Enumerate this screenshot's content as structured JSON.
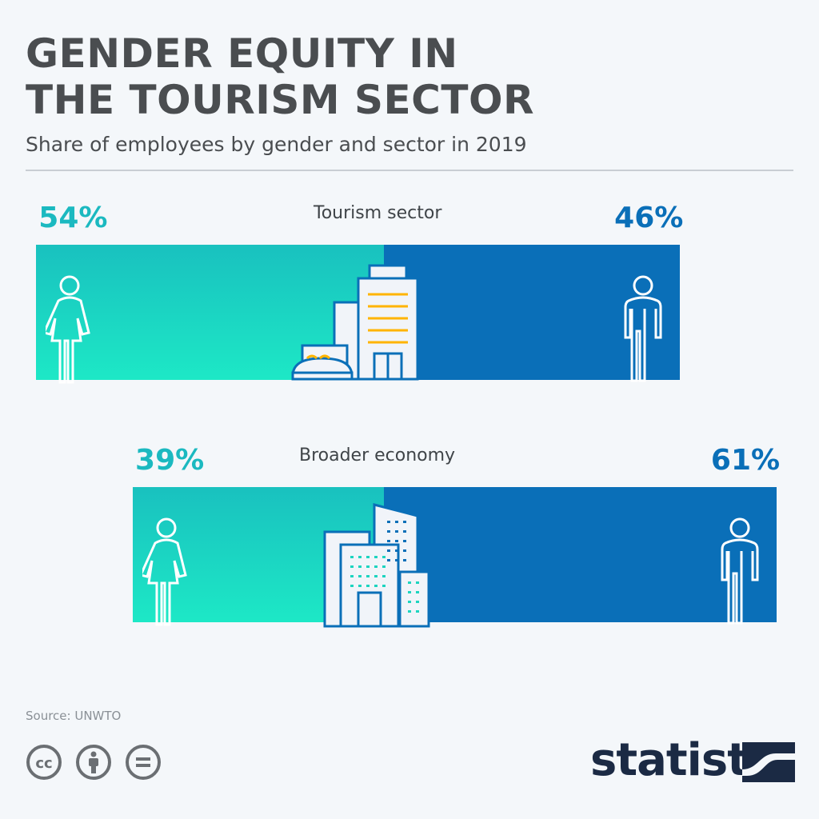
{
  "header": {
    "title_line1": "GENDER EQUITY IN",
    "title_line2": "THE TOURISM SECTOR",
    "subtitle": "Share of employees by gender and sector in 2019"
  },
  "chart_data": {
    "type": "bar",
    "stacked": true,
    "orientation": "horizontal",
    "categories": [
      "Tourism sector",
      "Broader economy"
    ],
    "series": [
      {
        "name": "Women",
        "values": [
          54,
          39
        ],
        "color": "#1bc8c0"
      },
      {
        "name": "Men",
        "values": [
          46,
          61
        ],
        "color": "#0a6fb8"
      }
    ],
    "labels": [
      [
        "54%",
        "46%"
      ],
      [
        "39%",
        "61%"
      ]
    ],
    "icons": [
      "woman-icon",
      "man-icon",
      "hotel-building-icon",
      "office-building-icon"
    ]
  },
  "footer": {
    "source": "Source: UNWTO",
    "logo_text": "statista"
  },
  "colors": {
    "women_text": "#1bb9c0",
    "men_text": "#0a6fb8",
    "logo": "#1b2a44"
  }
}
